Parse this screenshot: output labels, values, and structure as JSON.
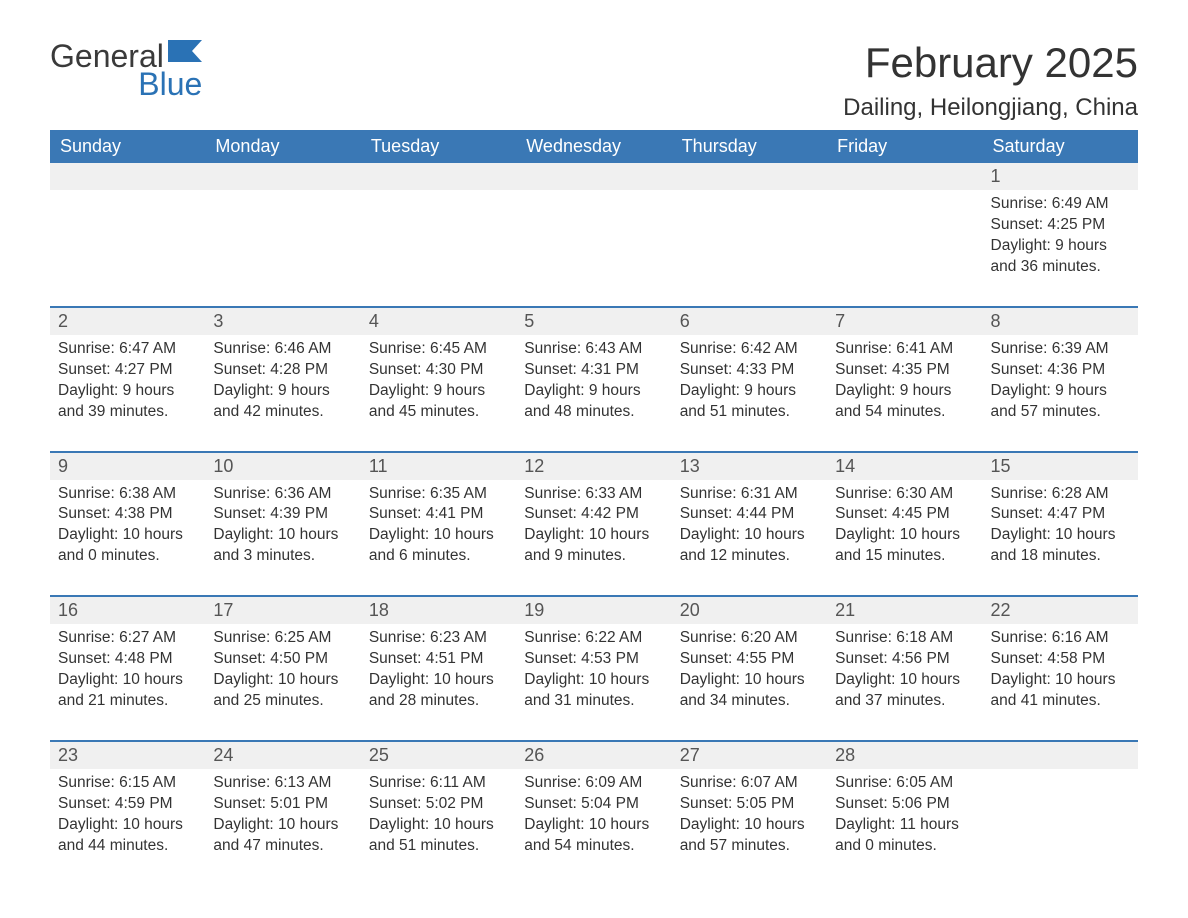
{
  "brand": {
    "word1": "General",
    "word2": "Blue",
    "accent_color": "#2a72b5"
  },
  "title": "February 2025",
  "location": "Dailing, Heilongjiang, China",
  "colors": {
    "header_bg": "#3a78b5",
    "header_text": "#ffffff",
    "daynum_bg": "#f0f0f0",
    "week_border": "#3a78b5",
    "body_text": "#333333",
    "page_bg": "#ffffff"
  },
  "fonts": {
    "title_size_pt": 32,
    "location_size_pt": 18,
    "header_size_pt": 14,
    "body_size_pt": 12
  },
  "day_labels": [
    "Sunday",
    "Monday",
    "Tuesday",
    "Wednesday",
    "Thursday",
    "Friday",
    "Saturday"
  ],
  "weeks": [
    [
      null,
      null,
      null,
      null,
      null,
      null,
      {
        "n": "1",
        "sunrise": "Sunrise: 6:49 AM",
        "sunset": "Sunset: 4:25 PM",
        "daylight": "Daylight: 9 hours and 36 minutes."
      }
    ],
    [
      {
        "n": "2",
        "sunrise": "Sunrise: 6:47 AM",
        "sunset": "Sunset: 4:27 PM",
        "daylight": "Daylight: 9 hours and 39 minutes."
      },
      {
        "n": "3",
        "sunrise": "Sunrise: 6:46 AM",
        "sunset": "Sunset: 4:28 PM",
        "daylight": "Daylight: 9 hours and 42 minutes."
      },
      {
        "n": "4",
        "sunrise": "Sunrise: 6:45 AM",
        "sunset": "Sunset: 4:30 PM",
        "daylight": "Daylight: 9 hours and 45 minutes."
      },
      {
        "n": "5",
        "sunrise": "Sunrise: 6:43 AM",
        "sunset": "Sunset: 4:31 PM",
        "daylight": "Daylight: 9 hours and 48 minutes."
      },
      {
        "n": "6",
        "sunrise": "Sunrise: 6:42 AM",
        "sunset": "Sunset: 4:33 PM",
        "daylight": "Daylight: 9 hours and 51 minutes."
      },
      {
        "n": "7",
        "sunrise": "Sunrise: 6:41 AM",
        "sunset": "Sunset: 4:35 PM",
        "daylight": "Daylight: 9 hours and 54 minutes."
      },
      {
        "n": "8",
        "sunrise": "Sunrise: 6:39 AM",
        "sunset": "Sunset: 4:36 PM",
        "daylight": "Daylight: 9 hours and 57 minutes."
      }
    ],
    [
      {
        "n": "9",
        "sunrise": "Sunrise: 6:38 AM",
        "sunset": "Sunset: 4:38 PM",
        "daylight": "Daylight: 10 hours and 0 minutes."
      },
      {
        "n": "10",
        "sunrise": "Sunrise: 6:36 AM",
        "sunset": "Sunset: 4:39 PM",
        "daylight": "Daylight: 10 hours and 3 minutes."
      },
      {
        "n": "11",
        "sunrise": "Sunrise: 6:35 AM",
        "sunset": "Sunset: 4:41 PM",
        "daylight": "Daylight: 10 hours and 6 minutes."
      },
      {
        "n": "12",
        "sunrise": "Sunrise: 6:33 AM",
        "sunset": "Sunset: 4:42 PM",
        "daylight": "Daylight: 10 hours and 9 minutes."
      },
      {
        "n": "13",
        "sunrise": "Sunrise: 6:31 AM",
        "sunset": "Sunset: 4:44 PM",
        "daylight": "Daylight: 10 hours and 12 minutes."
      },
      {
        "n": "14",
        "sunrise": "Sunrise: 6:30 AM",
        "sunset": "Sunset: 4:45 PM",
        "daylight": "Daylight: 10 hours and 15 minutes."
      },
      {
        "n": "15",
        "sunrise": "Sunrise: 6:28 AM",
        "sunset": "Sunset: 4:47 PM",
        "daylight": "Daylight: 10 hours and 18 minutes."
      }
    ],
    [
      {
        "n": "16",
        "sunrise": "Sunrise: 6:27 AM",
        "sunset": "Sunset: 4:48 PM",
        "daylight": "Daylight: 10 hours and 21 minutes."
      },
      {
        "n": "17",
        "sunrise": "Sunrise: 6:25 AM",
        "sunset": "Sunset: 4:50 PM",
        "daylight": "Daylight: 10 hours and 25 minutes."
      },
      {
        "n": "18",
        "sunrise": "Sunrise: 6:23 AM",
        "sunset": "Sunset: 4:51 PM",
        "daylight": "Daylight: 10 hours and 28 minutes."
      },
      {
        "n": "19",
        "sunrise": "Sunrise: 6:22 AM",
        "sunset": "Sunset: 4:53 PM",
        "daylight": "Daylight: 10 hours and 31 minutes."
      },
      {
        "n": "20",
        "sunrise": "Sunrise: 6:20 AM",
        "sunset": "Sunset: 4:55 PM",
        "daylight": "Daylight: 10 hours and 34 minutes."
      },
      {
        "n": "21",
        "sunrise": "Sunrise: 6:18 AM",
        "sunset": "Sunset: 4:56 PM",
        "daylight": "Daylight: 10 hours and 37 minutes."
      },
      {
        "n": "22",
        "sunrise": "Sunrise: 6:16 AM",
        "sunset": "Sunset: 4:58 PM",
        "daylight": "Daylight: 10 hours and 41 minutes."
      }
    ],
    [
      {
        "n": "23",
        "sunrise": "Sunrise: 6:15 AM",
        "sunset": "Sunset: 4:59 PM",
        "daylight": "Daylight: 10 hours and 44 minutes."
      },
      {
        "n": "24",
        "sunrise": "Sunrise: 6:13 AM",
        "sunset": "Sunset: 5:01 PM",
        "daylight": "Daylight: 10 hours and 47 minutes."
      },
      {
        "n": "25",
        "sunrise": "Sunrise: 6:11 AM",
        "sunset": "Sunset: 5:02 PM",
        "daylight": "Daylight: 10 hours and 51 minutes."
      },
      {
        "n": "26",
        "sunrise": "Sunrise: 6:09 AM",
        "sunset": "Sunset: 5:04 PM",
        "daylight": "Daylight: 10 hours and 54 minutes."
      },
      {
        "n": "27",
        "sunrise": "Sunrise: 6:07 AM",
        "sunset": "Sunset: 5:05 PM",
        "daylight": "Daylight: 10 hours and 57 minutes."
      },
      {
        "n": "28",
        "sunrise": "Sunrise: 6:05 AM",
        "sunset": "Sunset: 5:06 PM",
        "daylight": "Daylight: 11 hours and 0 minutes."
      },
      null
    ]
  ]
}
